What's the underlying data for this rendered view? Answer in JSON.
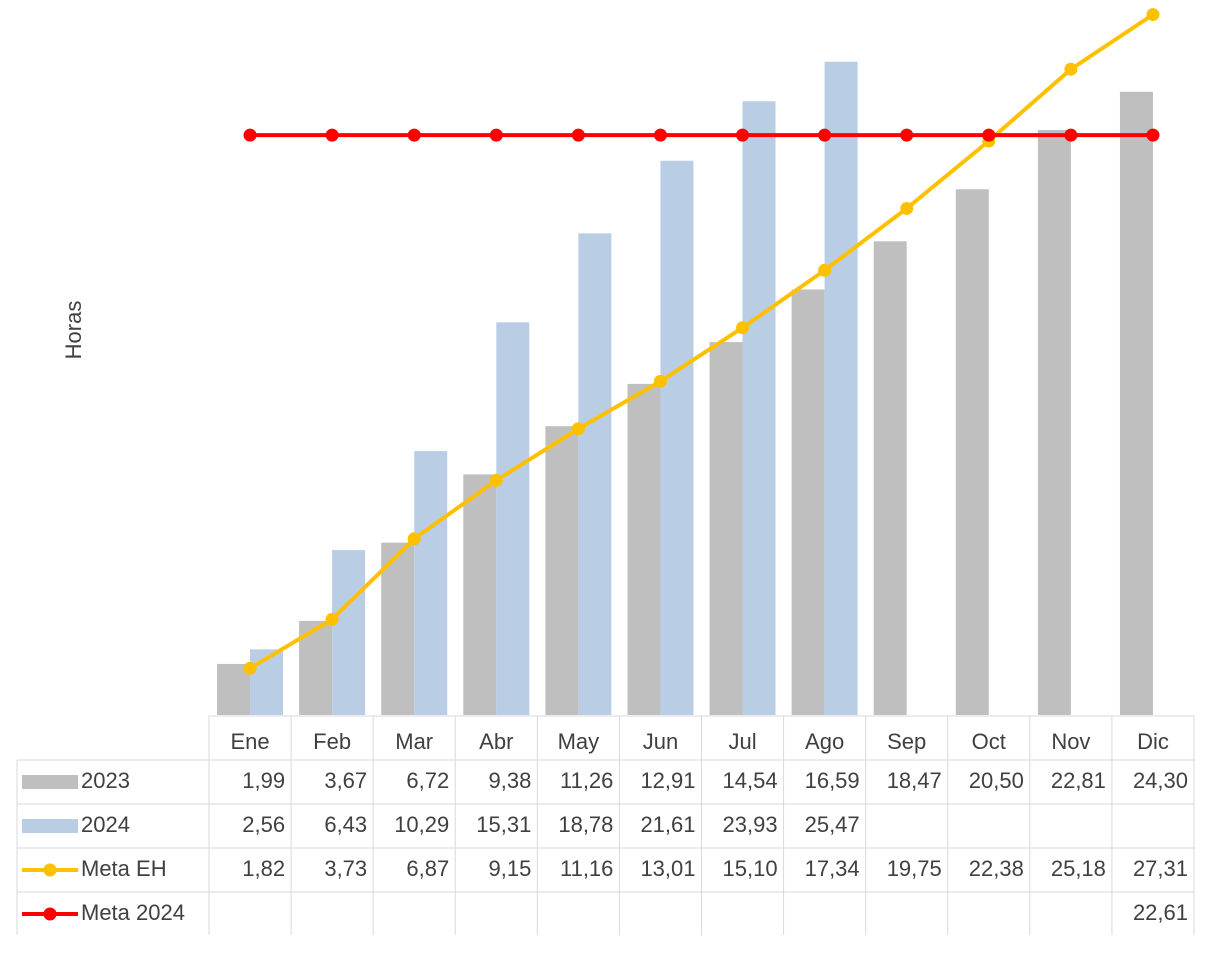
{
  "chart_data": {
    "type": "bar",
    "y_label": "Horas",
    "categories": [
      "Ene",
      "Feb",
      "Mar",
      "Abr",
      "May",
      "Jun",
      "Jul",
      "Ago",
      "Sep",
      "Oct",
      "Nov",
      "Dic"
    ],
    "ylim": [
      0,
      27.8
    ],
    "series": [
      {
        "name": "2023",
        "type": "bar",
        "color": "#bfbfbf",
        "values": [
          1.99,
          3.67,
          6.72,
          9.38,
          11.26,
          12.91,
          14.54,
          16.59,
          18.47,
          20.5,
          22.81,
          24.3
        ],
        "value_labels": [
          "1,99",
          "3,67",
          "6,72",
          "9,38",
          "11,26",
          "12,91",
          "14,54",
          "16,59",
          "18,47",
          "20,50",
          "22,81",
          "24,30"
        ]
      },
      {
        "name": "2024",
        "type": "bar",
        "color": "#b9cde5",
        "values": [
          2.56,
          6.43,
          10.29,
          15.31,
          18.78,
          21.61,
          23.93,
          25.47,
          null,
          null,
          null,
          null
        ],
        "value_labels": [
          "2,56",
          "6,43",
          "10,29",
          "15,31",
          "18,78",
          "21,61",
          "23,93",
          "25,47",
          null,
          null,
          null,
          null
        ]
      },
      {
        "name": "Meta EH",
        "type": "line",
        "color": "#ffc000",
        "values": [
          1.82,
          3.73,
          6.87,
          9.15,
          11.16,
          13.01,
          15.1,
          17.34,
          19.75,
          22.38,
          25.18,
          27.31
        ],
        "value_labels": [
          "1,82",
          "3,73",
          "6,87",
          "9,15",
          "11,16",
          "13,01",
          "15,10",
          "17,34",
          "19,75",
          "22,38",
          "25,18",
          "27,31"
        ]
      },
      {
        "name": "Meta 2024",
        "type": "line",
        "color": "#ff0000",
        "values": [
          22.61,
          22.61,
          22.61,
          22.61,
          22.61,
          22.61,
          22.61,
          22.61,
          22.61,
          22.61,
          22.61,
          22.61
        ],
        "value_labels": [
          null,
          null,
          null,
          null,
          null,
          null,
          null,
          null,
          null,
          null,
          null,
          "22,61"
        ]
      }
    ]
  }
}
